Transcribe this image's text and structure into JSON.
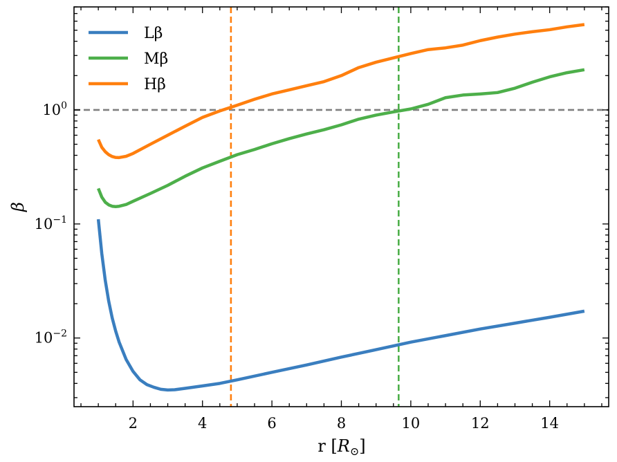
{
  "chart_data": {
    "type": "line",
    "xlabel": "r [R⊙]",
    "ylabel": "β",
    "yscale": "log",
    "xlim": [
      0.3,
      15.7
    ],
    "ylim": [
      0.0025,
      8.0
    ],
    "x_ticks": [
      2,
      4,
      6,
      8,
      10,
      12,
      14
    ],
    "x_tick_labels": [
      "2",
      "4",
      "6",
      "8",
      "10",
      "12",
      "14"
    ],
    "y_ticks": [
      {
        "value": 1,
        "base": "10",
        "exp": "0"
      },
      {
        "value": 0.1,
        "base": "10",
        "exp": "−1"
      },
      {
        "value": 0.01,
        "base": "10",
        "exp": "−2"
      }
    ],
    "legend_position": "top-left",
    "series": [
      {
        "name": "Lβ",
        "color": "#3a7ebf",
        "x": [
          1.0,
          1.1,
          1.2,
          1.3,
          1.4,
          1.5,
          1.6,
          1.8,
          2.0,
          2.2,
          2.4,
          2.6,
          2.8,
          3.0,
          3.2,
          3.5,
          4.0,
          4.5,
          5.0,
          6.0,
          7.0,
          8.0,
          9.0,
          10.0,
          11.0,
          12.0,
          13.0,
          14.0,
          15.0
        ],
        "y": [
          0.11,
          0.055,
          0.032,
          0.021,
          0.015,
          0.0115,
          0.0092,
          0.0065,
          0.0051,
          0.0043,
          0.0039,
          0.0037,
          0.00355,
          0.0035,
          0.00352,
          0.00362,
          0.0038,
          0.004,
          0.0043,
          0.005,
          0.0058,
          0.0068,
          0.0079,
          0.0092,
          0.0105,
          0.012,
          0.0135,
          0.0152,
          0.0172
        ]
      },
      {
        "name": "Mβ",
        "color": "#4daf4a",
        "x": [
          1.0,
          1.1,
          1.2,
          1.3,
          1.4,
          1.5,
          1.6,
          1.8,
          2.0,
          2.5,
          3.0,
          3.5,
          4.0,
          4.5,
          5.0,
          5.5,
          6.0,
          6.5,
          7.0,
          7.5,
          8.0,
          8.5,
          9.0,
          9.5,
          10.0,
          10.5,
          11.0,
          11.5,
          12.0,
          12.5,
          13.0,
          13.5,
          14.0,
          14.5,
          15.0
        ],
        "y": [
          0.205,
          0.172,
          0.155,
          0.147,
          0.143,
          0.142,
          0.143,
          0.148,
          0.158,
          0.185,
          0.218,
          0.262,
          0.31,
          0.355,
          0.405,
          0.45,
          0.505,
          0.56,
          0.615,
          0.67,
          0.74,
          0.83,
          0.9,
          0.96,
          1.02,
          1.12,
          1.28,
          1.35,
          1.38,
          1.42,
          1.55,
          1.75,
          1.95,
          2.12,
          2.25
        ]
      },
      {
        "name": "Hβ",
        "color": "#ff7f0e",
        "x": [
          1.0,
          1.1,
          1.2,
          1.3,
          1.4,
          1.5,
          1.6,
          1.8,
          2.0,
          2.5,
          3.0,
          3.5,
          4.0,
          4.5,
          5.0,
          5.5,
          6.0,
          6.5,
          7.0,
          7.5,
          8.0,
          8.5,
          9.0,
          9.5,
          10.0,
          10.5,
          11.0,
          11.5,
          12.0,
          12.5,
          13.0,
          13.5,
          14.0,
          14.5,
          15.0
        ],
        "y": [
          0.55,
          0.47,
          0.43,
          0.405,
          0.39,
          0.383,
          0.382,
          0.392,
          0.415,
          0.5,
          0.6,
          0.72,
          0.86,
          0.98,
          1.1,
          1.24,
          1.38,
          1.5,
          1.63,
          1.77,
          2.0,
          2.35,
          2.62,
          2.86,
          3.12,
          3.38,
          3.5,
          3.7,
          4.05,
          4.35,
          4.62,
          4.85,
          5.05,
          5.35,
          5.6
        ]
      }
    ],
    "reference_lines": [
      {
        "orientation": "horizontal",
        "value": 1.0,
        "color": "#7f7f7f",
        "style": "dashed"
      },
      {
        "orientation": "vertical",
        "value": 4.82,
        "color": "#ff7f0e",
        "style": "dashed"
      },
      {
        "orientation": "vertical",
        "value": 9.65,
        "color": "#4daf4a",
        "style": "dashed"
      }
    ]
  }
}
